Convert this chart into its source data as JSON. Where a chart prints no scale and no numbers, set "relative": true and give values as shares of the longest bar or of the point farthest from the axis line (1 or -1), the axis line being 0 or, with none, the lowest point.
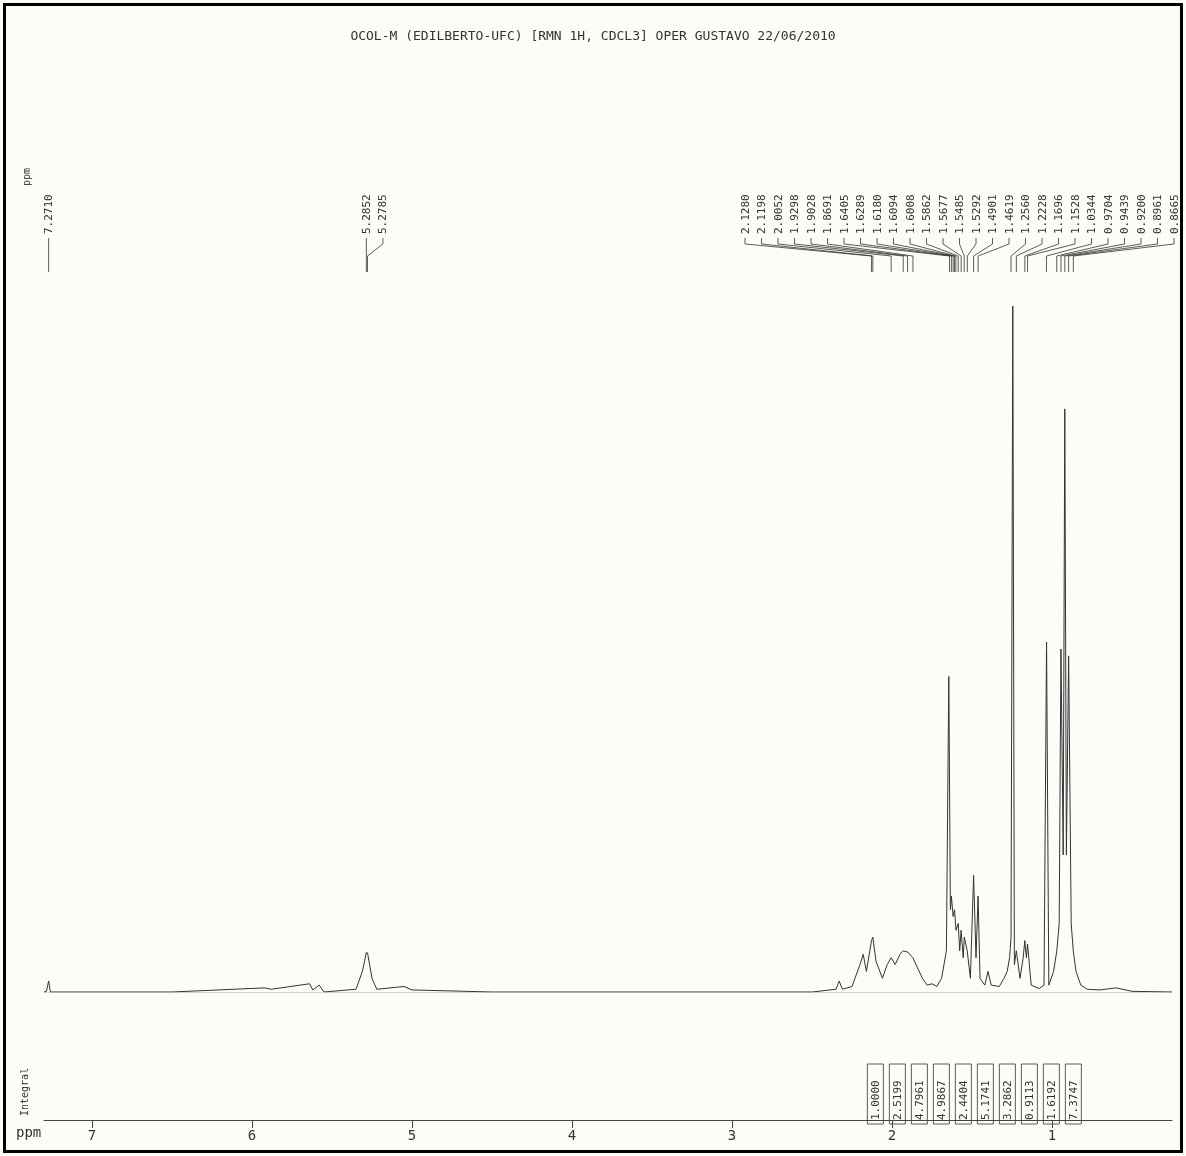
{
  "chart_data": {
    "type": "line",
    "relative": true,
    "title": "OCOL-M (EDILBERTO-UFC) [RMN 1H, CDCL3] OPER GUSTAVO 22/06/2010",
    "xlabel": "ppm",
    "ylabel": "Integral",
    "marker": "none",
    "line_style": "solid",
    "xlim": [
      7.3,
      0.25
    ],
    "xticks": [
      7,
      6,
      5,
      4,
      3,
      2,
      1
    ],
    "x": [
      7.3,
      7.285,
      7.271,
      7.26,
      6.5,
      5.92,
      5.88,
      5.64,
      5.62,
      5.58,
      5.55,
      5.35,
      5.31,
      5.285,
      5.278,
      5.25,
      5.22,
      5.05,
      5.0,
      4.5,
      3.5,
      2.5,
      2.35,
      2.33,
      2.31,
      2.25,
      2.2,
      2.18,
      2.16,
      2.128,
      2.12,
      2.1,
      2.06,
      2.03,
      2.005,
      1.98,
      1.95,
      1.93,
      1.9,
      1.87,
      1.84,
      1.81,
      1.78,
      1.75,
      1.72,
      1.69,
      1.66,
      1.645,
      1.635,
      1.629,
      1.618,
      1.609,
      1.6,
      1.586,
      1.577,
      1.568,
      1.555,
      1.548,
      1.53,
      1.51,
      1.49,
      1.475,
      1.462,
      1.45,
      1.42,
      1.4,
      1.38,
      1.33,
      1.3,
      1.28,
      1.265,
      1.256,
      1.245,
      1.235,
      1.223,
      1.2,
      1.18,
      1.17,
      1.16,
      1.153,
      1.13,
      1.08,
      1.05,
      1.034,
      1.02,
      0.99,
      0.97,
      0.955,
      0.944,
      0.93,
      0.92,
      0.91,
      0.896,
      0.88,
      0.867,
      0.85,
      0.82,
      0.78,
      0.7,
      0.6,
      0.5,
      0.25
    ],
    "series": [
      {
        "color": "#333333",
        "values": [
          0,
          0.001,
          0.016,
          0,
          0,
          0.006,
          0.004,
          0.012,
          0.003,
          0.01,
          0,
          0.004,
          0.03,
          0.058,
          0.057,
          0.02,
          0.004,
          0.008,
          0.003,
          0,
          0,
          0,
          0.004,
          0.016,
          0.004,
          0.008,
          0.04,
          0.055,
          0.03,
          0.075,
          0.08,
          0.045,
          0.02,
          0.04,
          0.05,
          0.04,
          0.055,
          0.06,
          0.058,
          0.05,
          0.035,
          0.02,
          0.01,
          0.012,
          0.008,
          0.02,
          0.06,
          0.46,
          0.12,
          0.14,
          0.11,
          0.12,
          0.09,
          0.1,
          0.06,
          0.09,
          0.05,
          0.08,
          0.06,
          0.02,
          0.17,
          0.05,
          0.14,
          0.02,
          0.01,
          0.03,
          0.01,
          0.008,
          0.02,
          0.03,
          0.05,
          0.08,
          1.0,
          0.04,
          0.06,
          0.02,
          0.05,
          0.075,
          0.05,
          0.07,
          0.01,
          0.005,
          0.01,
          0.51,
          0.01,
          0.03,
          0.06,
          0.1,
          0.5,
          0.2,
          0.85,
          0.2,
          0.49,
          0.1,
          0.06,
          0.03,
          0.01,
          0.004,
          0.003,
          0.006,
          0.001,
          0
        ]
      }
    ],
    "annotations": [
      "ppm",
      {
        "text": "7.2710",
        "x": 7.271
      },
      {
        "text": "5.2852",
        "x": 5.2852
      },
      {
        "text": "5.2785",
        "x": 5.2785
      },
      {
        "text": "2.1280",
        "x": 2.128
      },
      {
        "text": "2.1198",
        "x": 2.1198
      },
      {
        "text": "2.0052",
        "x": 2.0052
      },
      {
        "text": "1.9298",
        "x": 1.9298
      },
      {
        "text": "1.9028",
        "x": 1.9028
      },
      {
        "text": "1.8691",
        "x": 1.8691
      },
      {
        "text": "1.6405",
        "x": 1.6405
      },
      {
        "text": "1.6289",
        "x": 1.6289
      },
      {
        "text": "1.6180",
        "x": 1.618
      },
      {
        "text": "1.6094",
        "x": 1.6094
      },
      {
        "text": "1.6008",
        "x": 1.6008
      },
      {
        "text": "1.5862",
        "x": 1.5862
      },
      {
        "text": "1.5677",
        "x": 1.5677
      },
      {
        "text": "1.5485",
        "x": 1.5485
      },
      {
        "text": "1.5292",
        "x": 1.5292
      },
      {
        "text": "1.4901",
        "x": 1.4901
      },
      {
        "text": "1.4619",
        "x": 1.4619
      },
      {
        "text": "1.2560",
        "x": 1.256
      },
      {
        "text": "1.2228",
        "x": 1.2228
      },
      {
        "text": "1.1696",
        "x": 1.1696
      },
      {
        "text": "1.1528",
        "x": 1.1528
      },
      {
        "text": "1.0344",
        "x": 1.0344
      },
      {
        "text": "0.9704",
        "x": 0.9704
      },
      {
        "text": "0.9439",
        "x": 0.9439
      },
      {
        "text": "0.9200",
        "x": 0.92
      },
      {
        "text": "0.8961",
        "x": 0.8961
      },
      {
        "text": "0.8665",
        "x": 0.8665
      },
      "1.0000",
      "2.5199",
      "4.7961",
      "4.9867",
      "2.4404",
      "5.1741",
      "3.2862",
      "0.9113",
      "1.6192",
      "7.3747"
    ]
  }
}
